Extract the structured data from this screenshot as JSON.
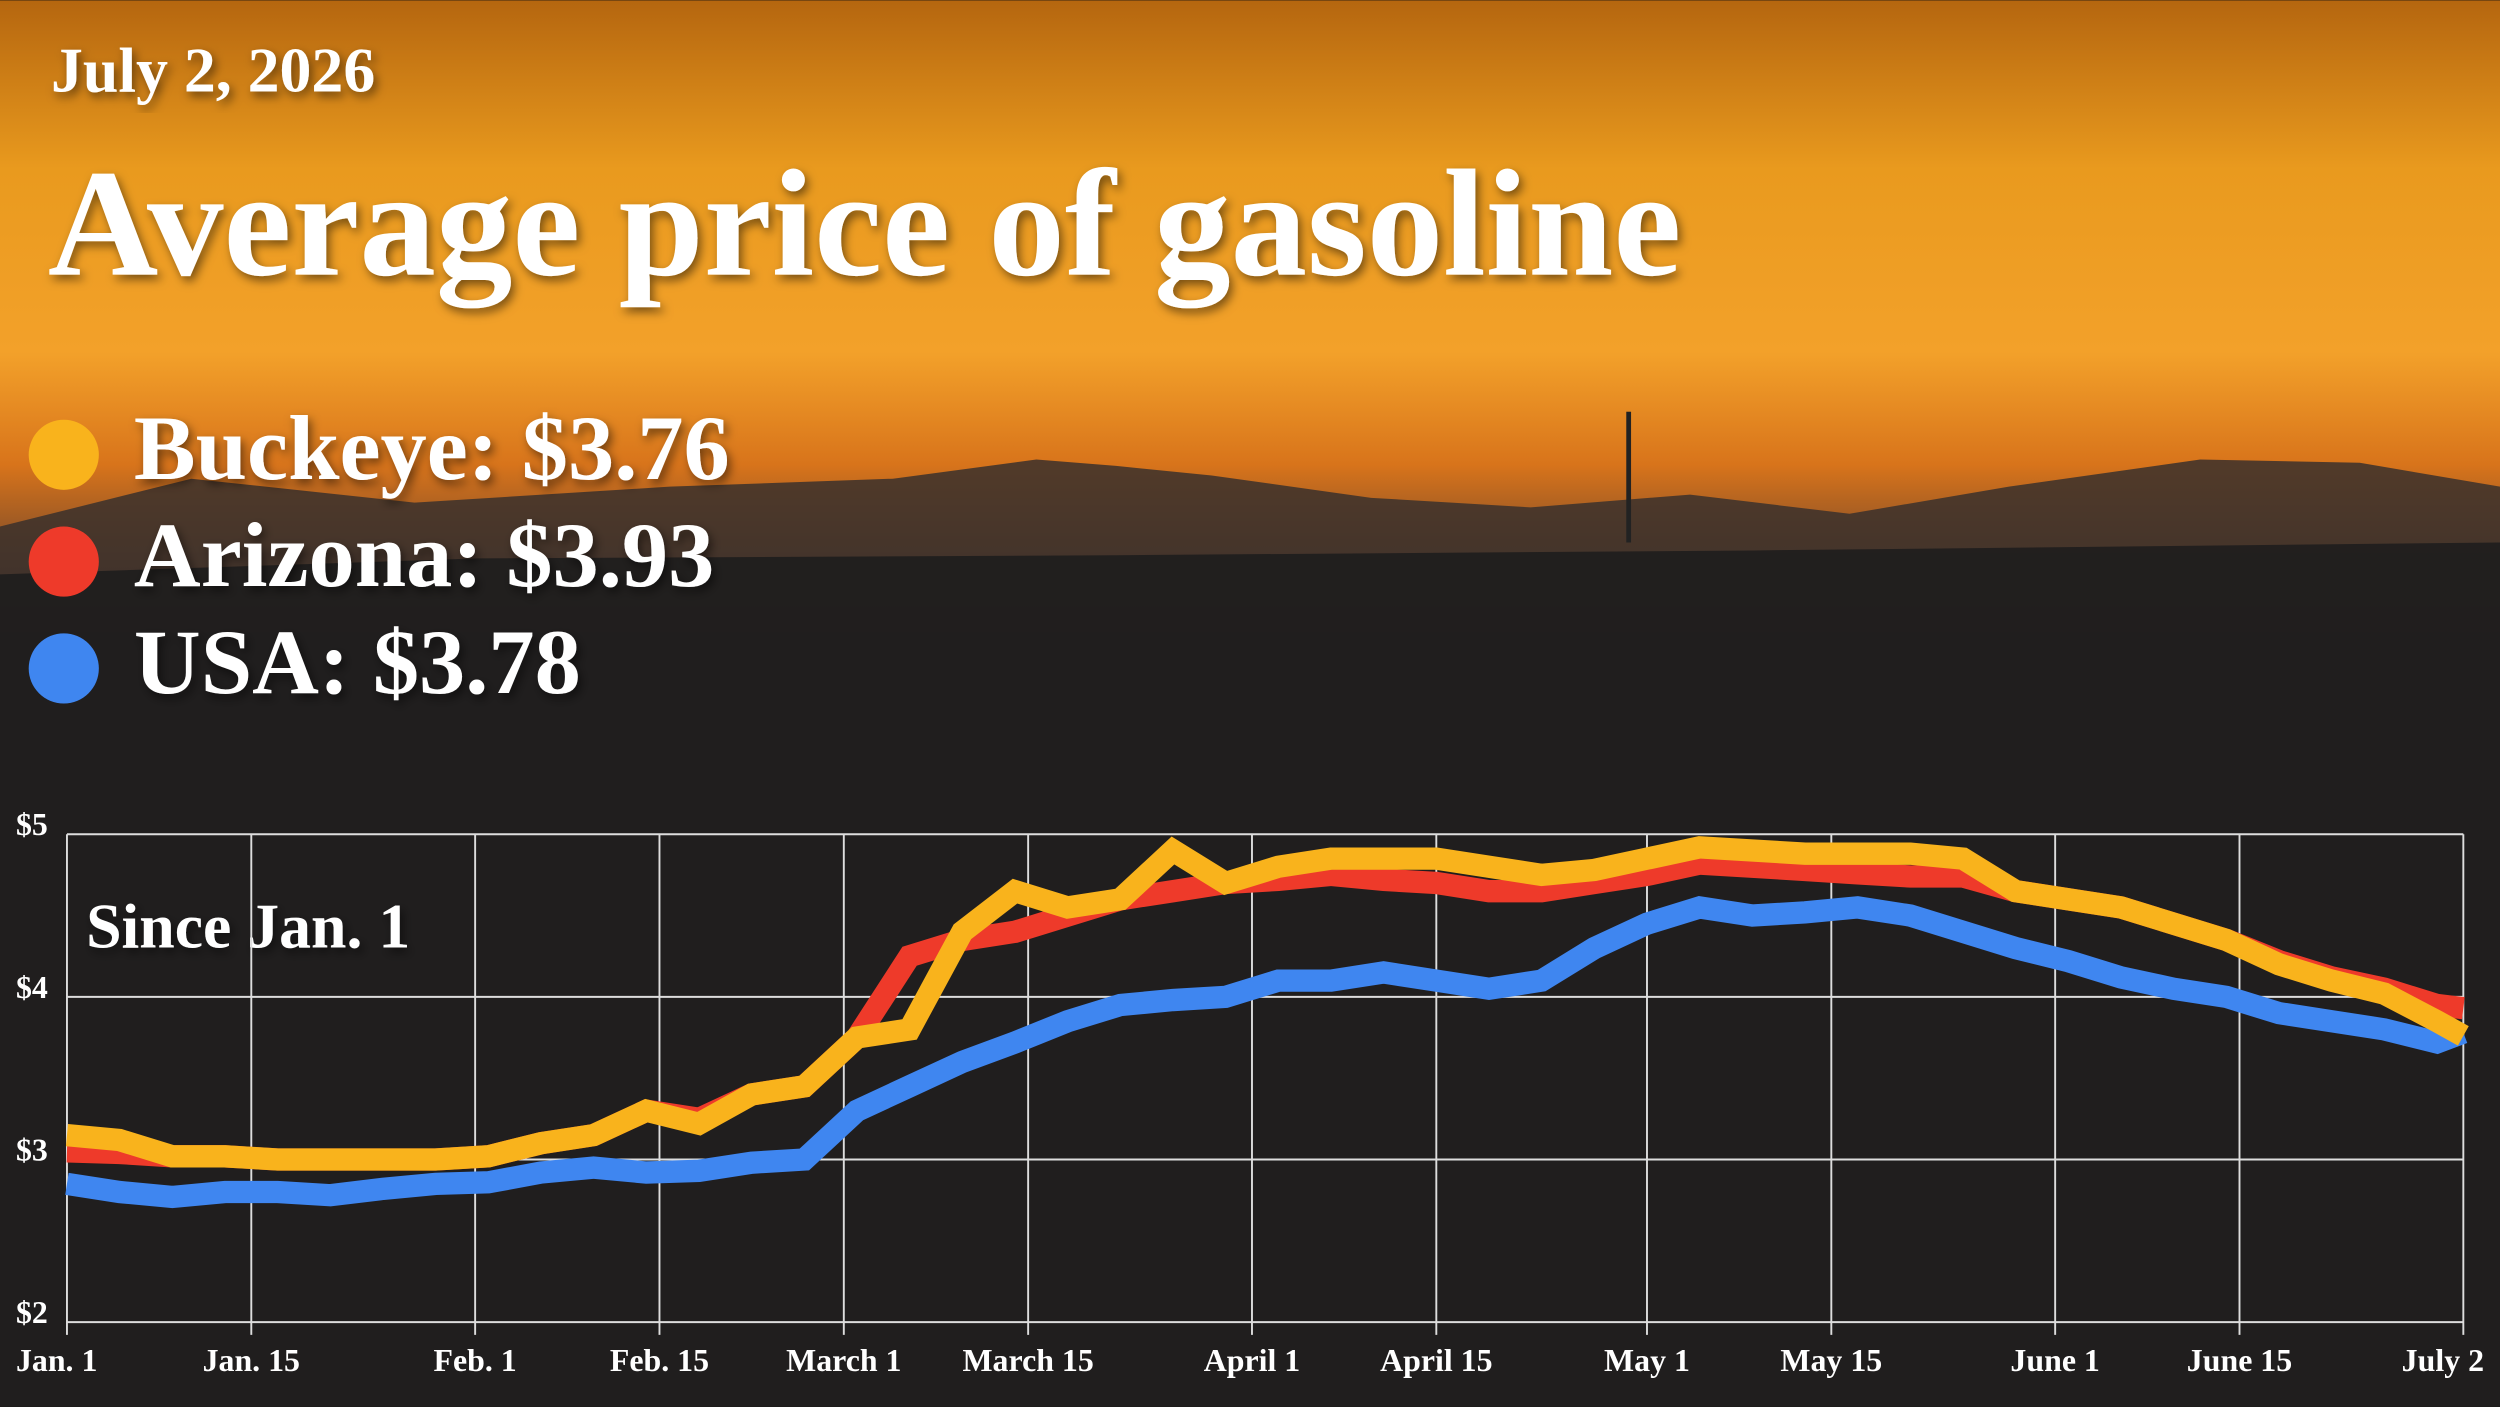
{
  "chart_data": {
    "type": "line",
    "date": "July 2, 2026",
    "title": "Average price of gasoline",
    "annotation": "Since Jan. 1",
    "x": [
      0,
      4,
      8,
      12,
      16,
      20,
      24,
      28,
      32,
      36,
      40,
      44,
      48,
      52,
      56,
      60,
      64,
      68,
      72,
      76,
      80,
      84,
      88,
      92,
      96,
      100,
      104,
      108,
      112,
      116,
      120,
      124,
      128,
      132,
      136,
      140,
      144,
      148,
      152,
      156,
      160,
      164,
      168,
      172,
      176,
      180,
      182
    ],
    "xlim": [
      0,
      182
    ],
    "xticks": [
      {
        "value": 0,
        "label": "Jan. 1"
      },
      {
        "value": 14,
        "label": "Jan. 15"
      },
      {
        "value": 31,
        "label": "Feb. 1"
      },
      {
        "value": 45,
        "label": "Feb. 15"
      },
      {
        "value": 59,
        "label": "March 1"
      },
      {
        "value": 73,
        "label": "March 15"
      },
      {
        "value": 90,
        "label": "April 1"
      },
      {
        "value": 104,
        "label": "April 15"
      },
      {
        "value": 120,
        "label": "May 1"
      },
      {
        "value": 134,
        "label": "May 15"
      },
      {
        "value": 151,
        "label": "June 1"
      },
      {
        "value": 165,
        "label": "June 15"
      },
      {
        "value": 182,
        "label": "July 2"
      }
    ],
    "ylim": [
      2,
      5
    ],
    "yticks": [
      {
        "value": 2,
        "label": "$2"
      },
      {
        "value": 3,
        "label": "$3"
      },
      {
        "value": 4,
        "label": "$4"
      },
      {
        "value": 5,
        "label": "$5"
      }
    ],
    "grid": true,
    "series": [
      {
        "name": "Arizona: $3.93",
        "color": "#ee3a2a",
        "values": [
          3.05,
          3.04,
          3.02,
          3.02,
          3.0,
          3.0,
          3.0,
          3.0,
          3.02,
          3.1,
          3.15,
          3.3,
          3.25,
          3.4,
          3.45,
          3.75,
          4.25,
          4.35,
          4.4,
          4.5,
          4.6,
          4.65,
          4.7,
          4.72,
          4.75,
          4.72,
          4.7,
          4.65,
          4.65,
          4.7,
          4.75,
          4.82,
          4.8,
          4.78,
          4.76,
          4.74,
          4.74,
          4.65,
          4.6,
          4.55,
          4.45,
          4.35,
          4.22,
          4.12,
          4.05,
          3.95,
          3.93
        ]
      },
      {
        "name": "USA: $3.78",
        "color": "#3f86f0",
        "values": [
          2.85,
          2.8,
          2.77,
          2.8,
          2.8,
          2.78,
          2.82,
          2.85,
          2.86,
          2.92,
          2.95,
          2.92,
          2.93,
          2.98,
          3.0,
          3.3,
          3.45,
          3.6,
          3.72,
          3.85,
          3.95,
          3.98,
          4.0,
          4.1,
          4.1,
          4.15,
          4.1,
          4.05,
          4.1,
          4.3,
          4.45,
          4.55,
          4.5,
          4.52,
          4.55,
          4.5,
          4.4,
          4.3,
          4.22,
          4.12,
          4.05,
          4.0,
          3.9,
          3.85,
          3.8,
          3.72,
          3.78
        ]
      },
      {
        "name": "Buckeye: $3.76",
        "color": "#f9b31c",
        "values": [
          3.15,
          3.12,
          3.02,
          3.02,
          3.0,
          3.0,
          3.0,
          3.0,
          3.02,
          3.1,
          3.15,
          3.3,
          3.22,
          3.4,
          3.45,
          3.75,
          3.8,
          4.4,
          4.65,
          4.55,
          4.6,
          4.9,
          4.7,
          4.8,
          4.85,
          4.85,
          4.85,
          4.8,
          4.75,
          4.78,
          4.85,
          4.92,
          4.9,
          4.88,
          4.88,
          4.88,
          4.85,
          4.65,
          4.6,
          4.55,
          4.45,
          4.35,
          4.2,
          4.1,
          4.02,
          3.85,
          3.76
        ]
      }
    ],
    "legend_order": [
      2,
      0,
      1
    ]
  }
}
